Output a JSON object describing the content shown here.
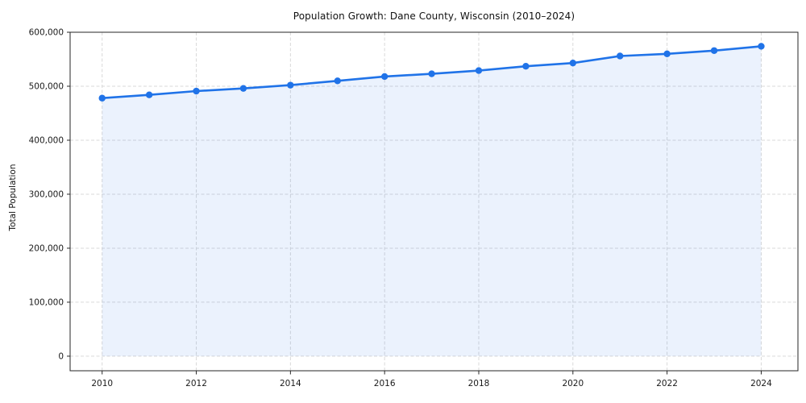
{
  "figure": {
    "title": "Population Growth: Dane County, Wisconsin (2010–2024)",
    "background": "#ffffff"
  },
  "chart_data": {
    "type": "area",
    "title": "Population Growth: Dane County, Wisconsin (2010–2024)",
    "xlabel": "",
    "ylabel": "Total Population",
    "series_name": "Total Population",
    "x": [
      2010,
      2011,
      2012,
      2013,
      2014,
      2015,
      2016,
      2017,
      2018,
      2019,
      2020,
      2021,
      2022,
      2023,
      2024
    ],
    "values": [
      478000,
      484000,
      491000,
      496000,
      502000,
      510000,
      518000,
      523000,
      529000,
      537000,
      543000,
      556000,
      560000,
      566000,
      574000
    ],
    "xlim": [
      2009.32,
      2024.78
    ],
    "ylim": [
      -27000,
      600000
    ],
    "xticks": {
      "values": [
        2010,
        2012,
        2014,
        2016,
        2018,
        2020,
        2022,
        2024
      ],
      "labels": [
        "2010",
        "2012",
        "2014",
        "2016",
        "2018",
        "2020",
        "2022",
        "2024"
      ]
    },
    "yticks": {
      "values": [
        0,
        100000,
        200000,
        300000,
        400000,
        500000,
        600000
      ],
      "labels": [
        "0",
        "100,000",
        "200,000",
        "300,000",
        "400,000",
        "500,000",
        "600,000"
      ]
    },
    "grid": true,
    "grid_style": "dashed",
    "legend": false,
    "marker": "circle",
    "colors": {
      "line": "#2073e8",
      "marker": "#2073e8",
      "fill": "#2073e8",
      "fill_opacity": "0.09",
      "grid": "#d9d9d9",
      "spine": "#262626",
      "tick_text": "#1a1a1a"
    }
  }
}
